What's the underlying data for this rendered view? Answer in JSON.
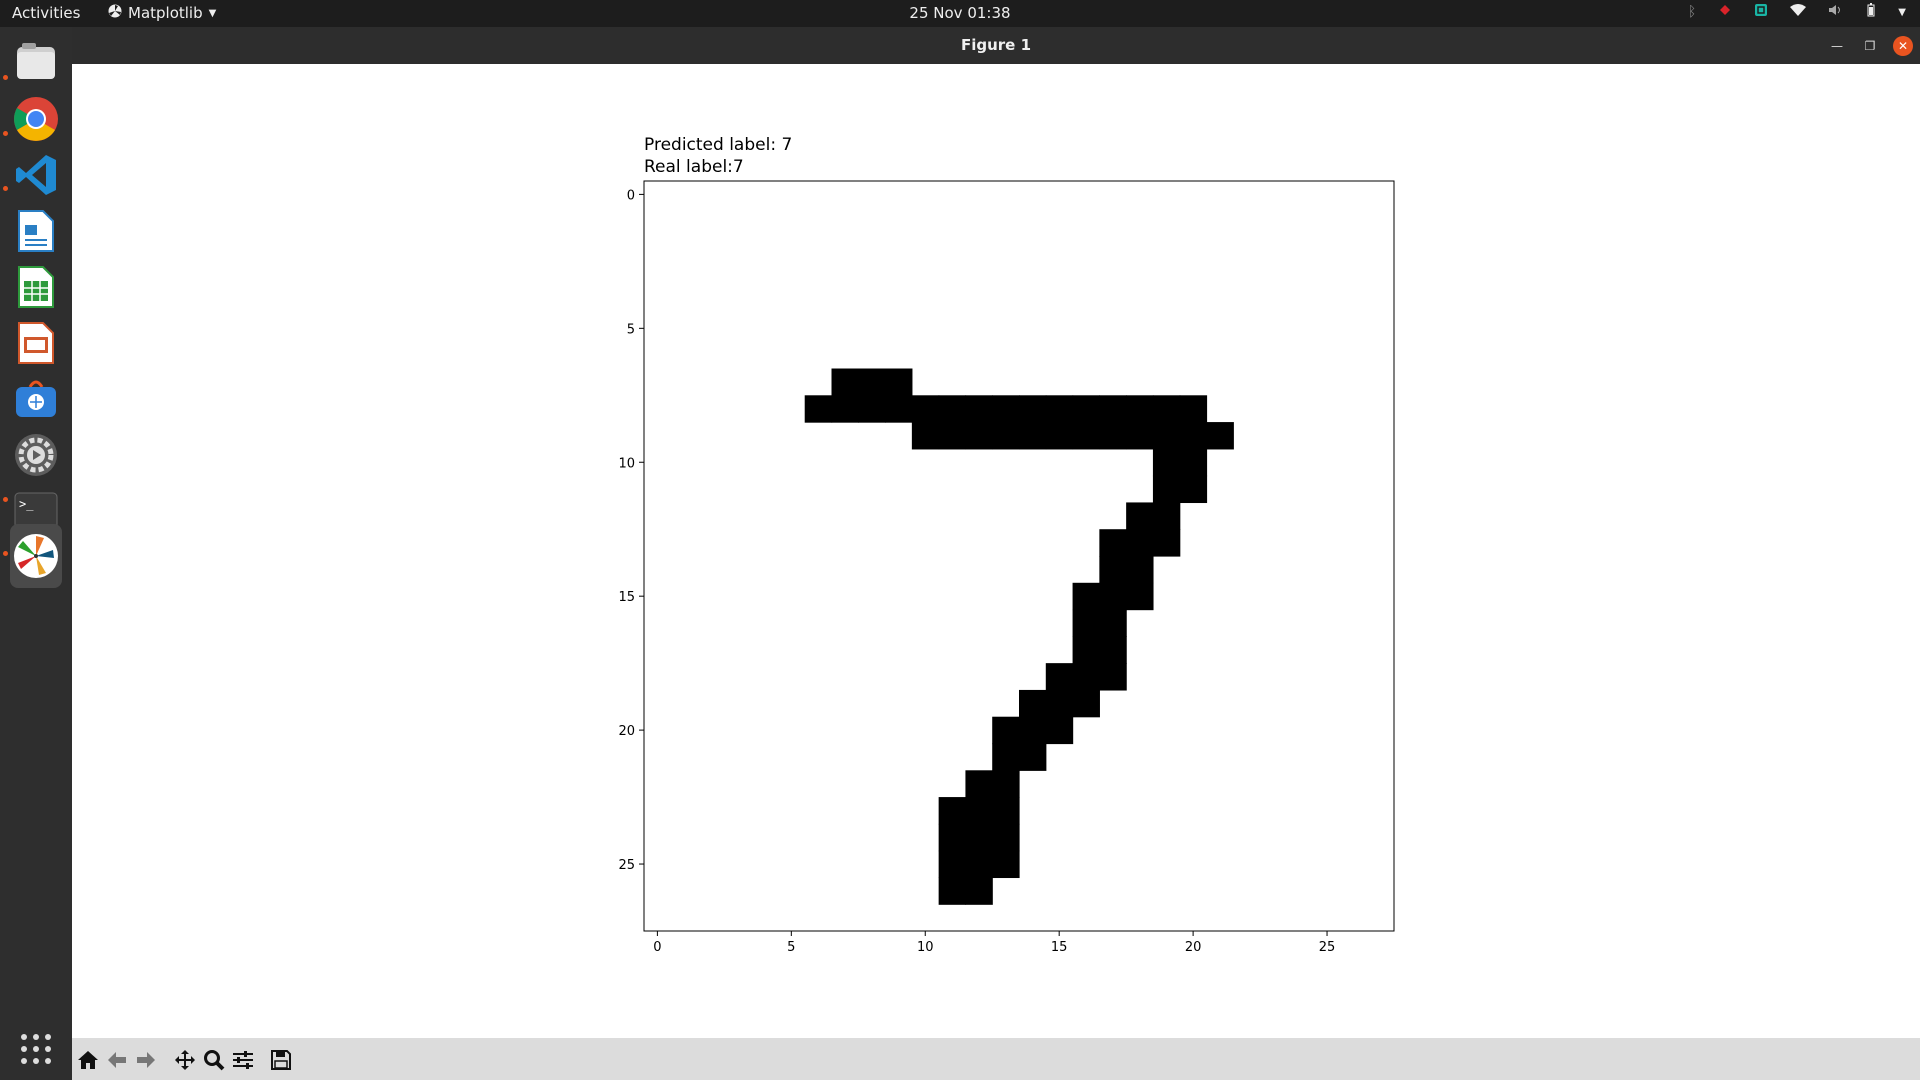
{
  "topbar": {
    "activities": "Activities",
    "app_menu": "Matplotlib",
    "clock": "25 Nov  01:38"
  },
  "dock": {
    "items": [
      {
        "name": "files",
        "icon": "folder-icon"
      },
      {
        "name": "chrome",
        "icon": "chrome-icon"
      },
      {
        "name": "vscode",
        "icon": "vscode-icon"
      },
      {
        "name": "writer",
        "icon": "writer-icon"
      },
      {
        "name": "calc",
        "icon": "calc-icon"
      },
      {
        "name": "impress",
        "icon": "impress-icon"
      },
      {
        "name": "software",
        "icon": "software-store-icon"
      },
      {
        "name": "settings",
        "icon": "settings-icon"
      },
      {
        "name": "terminal",
        "icon": "terminal-icon"
      },
      {
        "name": "matplotlib",
        "icon": "matplotlib-icon"
      }
    ]
  },
  "window": {
    "title": "Figure 1"
  },
  "figure": {
    "title_line1": "Predicted label: 7",
    "title_line2": "Real label:7"
  },
  "chart_data": {
    "type": "heatmap",
    "colormap": "binary",
    "shape": [
      28,
      28
    ],
    "xticks": [
      0,
      5,
      10,
      15,
      20,
      25
    ],
    "yticks": [
      0,
      5,
      10,
      15,
      20,
      25
    ],
    "xlim": [
      -0.5,
      27.5
    ],
    "ylim": [
      27.5,
      -0.5
    ],
    "filled_pixels": [
      [
        7,
        7
      ],
      [
        7,
        8
      ],
      [
        7,
        9
      ],
      [
        8,
        6
      ],
      [
        8,
        7
      ],
      [
        8,
        8
      ],
      [
        8,
        9
      ],
      [
        8,
        10
      ],
      [
        8,
        11
      ],
      [
        8,
        12
      ],
      [
        8,
        13
      ],
      [
        8,
        14
      ],
      [
        8,
        15
      ],
      [
        8,
        16
      ],
      [
        8,
        17
      ],
      [
        8,
        18
      ],
      [
        8,
        19
      ],
      [
        8,
        20
      ],
      [
        9,
        10
      ],
      [
        9,
        11
      ],
      [
        9,
        12
      ],
      [
        9,
        13
      ],
      [
        9,
        14
      ],
      [
        9,
        15
      ],
      [
        9,
        16
      ],
      [
        9,
        17
      ],
      [
        9,
        18
      ],
      [
        9,
        19
      ],
      [
        9,
        20
      ],
      [
        9,
        21
      ],
      [
        10,
        19
      ],
      [
        10,
        20
      ],
      [
        11,
        19
      ],
      [
        11,
        20
      ],
      [
        12,
        18
      ],
      [
        12,
        19
      ],
      [
        13,
        17
      ],
      [
        13,
        18
      ],
      [
        13,
        19
      ],
      [
        14,
        17
      ],
      [
        14,
        18
      ],
      [
        15,
        16
      ],
      [
        15,
        17
      ],
      [
        15,
        18
      ],
      [
        16,
        16
      ],
      [
        16,
        17
      ],
      [
        17,
        16
      ],
      [
        17,
        17
      ],
      [
        18,
        15
      ],
      [
        18,
        16
      ],
      [
        18,
        17
      ],
      [
        19,
        14
      ],
      [
        19,
        15
      ],
      [
        19,
        16
      ],
      [
        20,
        13
      ],
      [
        20,
        14
      ],
      [
        20,
        15
      ],
      [
        21,
        13
      ],
      [
        21,
        14
      ],
      [
        22,
        12
      ],
      [
        22,
        13
      ],
      [
        23,
        11
      ],
      [
        23,
        12
      ],
      [
        23,
        13
      ],
      [
        24,
        11
      ],
      [
        24,
        12
      ],
      [
        24,
        13
      ],
      [
        25,
        11
      ],
      [
        25,
        12
      ],
      [
        25,
        13
      ],
      [
        26,
        11
      ],
      [
        26,
        12
      ]
    ]
  },
  "toolbar": {
    "buttons": [
      "home-icon",
      "back-icon",
      "forward-icon",
      "pan-icon",
      "zoom-icon",
      "configure-icon",
      "save-icon"
    ]
  }
}
